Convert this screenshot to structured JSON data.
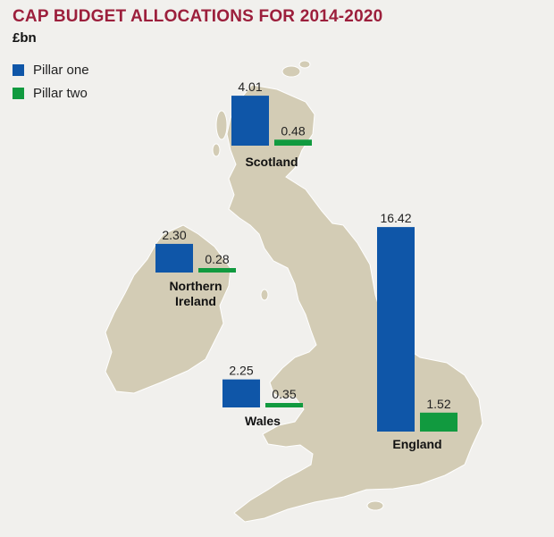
{
  "title": "CAP BUDGET ALLOCATIONS FOR 2014-2020",
  "unit": "£bn",
  "colors": {
    "pillar_one": "#0f56a8",
    "pillar_two": "#119a3f",
    "map_land": "#d3ccb5",
    "background": "#f1f0ed",
    "title": "#9c1f3c"
  },
  "chart_data": {
    "type": "bar",
    "title": "CAP BUDGET ALLOCATIONS FOR 2014-2020",
    "ylabel": "£bn",
    "legend": [
      "Pillar one",
      "Pillar two"
    ],
    "categories": [
      "Scotland",
      "Northern Ireland",
      "Wales",
      "England"
    ],
    "category_labels": [
      [
        "Scotland"
      ],
      [
        "Northern",
        "Ireland"
      ],
      [
        "Wales"
      ],
      [
        "England"
      ]
    ],
    "series": [
      {
        "name": "Pillar one",
        "values": [
          4.01,
          2.3,
          2.25,
          16.42
        ],
        "labels": [
          "4.01",
          "2.30",
          "2.25",
          "16.42"
        ]
      },
      {
        "name": "Pillar two",
        "values": [
          0.48,
          0.28,
          0.35,
          1.52
        ],
        "labels": [
          "0.48",
          "0.28",
          "0.35",
          "1.52"
        ]
      }
    ],
    "legend_position": "top-left",
    "grid": false
  }
}
